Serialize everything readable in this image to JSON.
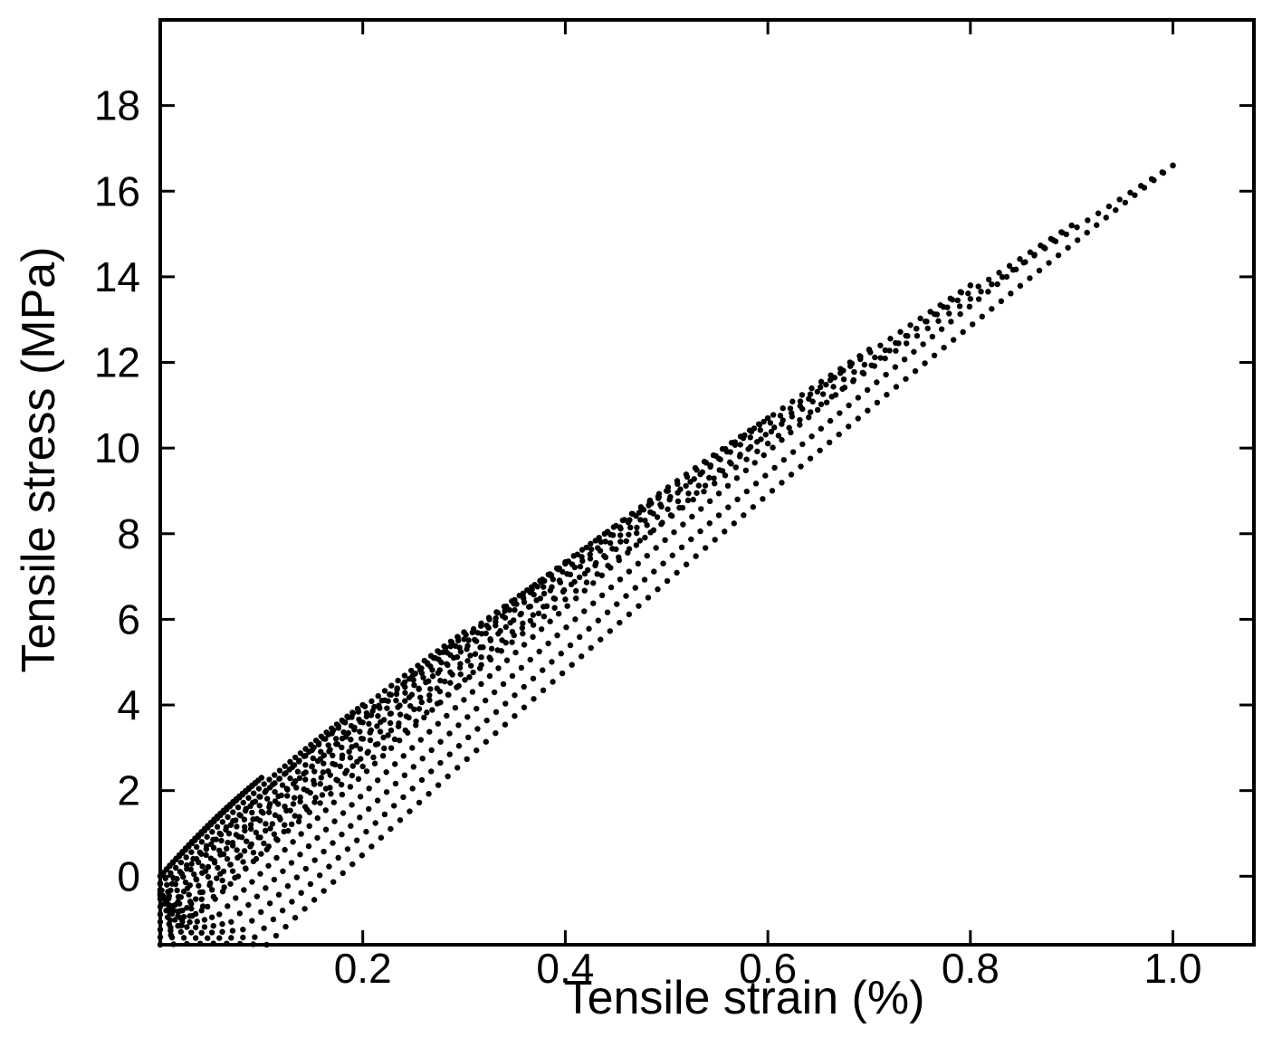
{
  "chart_data": {
    "type": "scatter",
    "title": "",
    "xlabel": "Tensile strain (%)",
    "ylabel": "Tensile stress (MPa)",
    "xlim": [
      0,
      1.08
    ],
    "ylim": [
      -1.6,
      20
    ],
    "x_ticks": [
      "0.2",
      "0.4",
      "0.6",
      "0.8",
      "1.0"
    ],
    "x_tick_values": [
      0.2,
      0.4,
      0.6,
      0.8,
      1.0
    ],
    "y_ticks": [
      "0",
      "2",
      "4",
      "6",
      "8",
      "10",
      "12",
      "14",
      "16",
      "18"
    ],
    "y_tick_values": [
      0,
      2,
      4,
      6,
      8,
      10,
      12,
      14,
      16,
      18
    ],
    "grid": false,
    "legend": "none",
    "marker_color": "#000000",
    "cycles": [
      {
        "max_strain": 0.1,
        "max_stress": 2.3
      },
      {
        "max_strain": 0.2,
        "max_stress": 4.0
      },
      {
        "max_strain": 0.3,
        "max_stress": 5.7
      },
      {
        "max_strain": 0.4,
        "max_stress": 7.3
      },
      {
        "max_strain": 0.5,
        "max_stress": 9.0
      },
      {
        "max_strain": 0.6,
        "max_stress": 10.7
      },
      {
        "max_strain": 0.7,
        "max_stress": 12.3
      },
      {
        "max_strain": 0.8,
        "max_stress": 13.8
      },
      {
        "max_strain": 0.9,
        "max_stress": 15.2
      },
      {
        "max_strain": 1.0,
        "max_stress": 16.6
      }
    ]
  }
}
